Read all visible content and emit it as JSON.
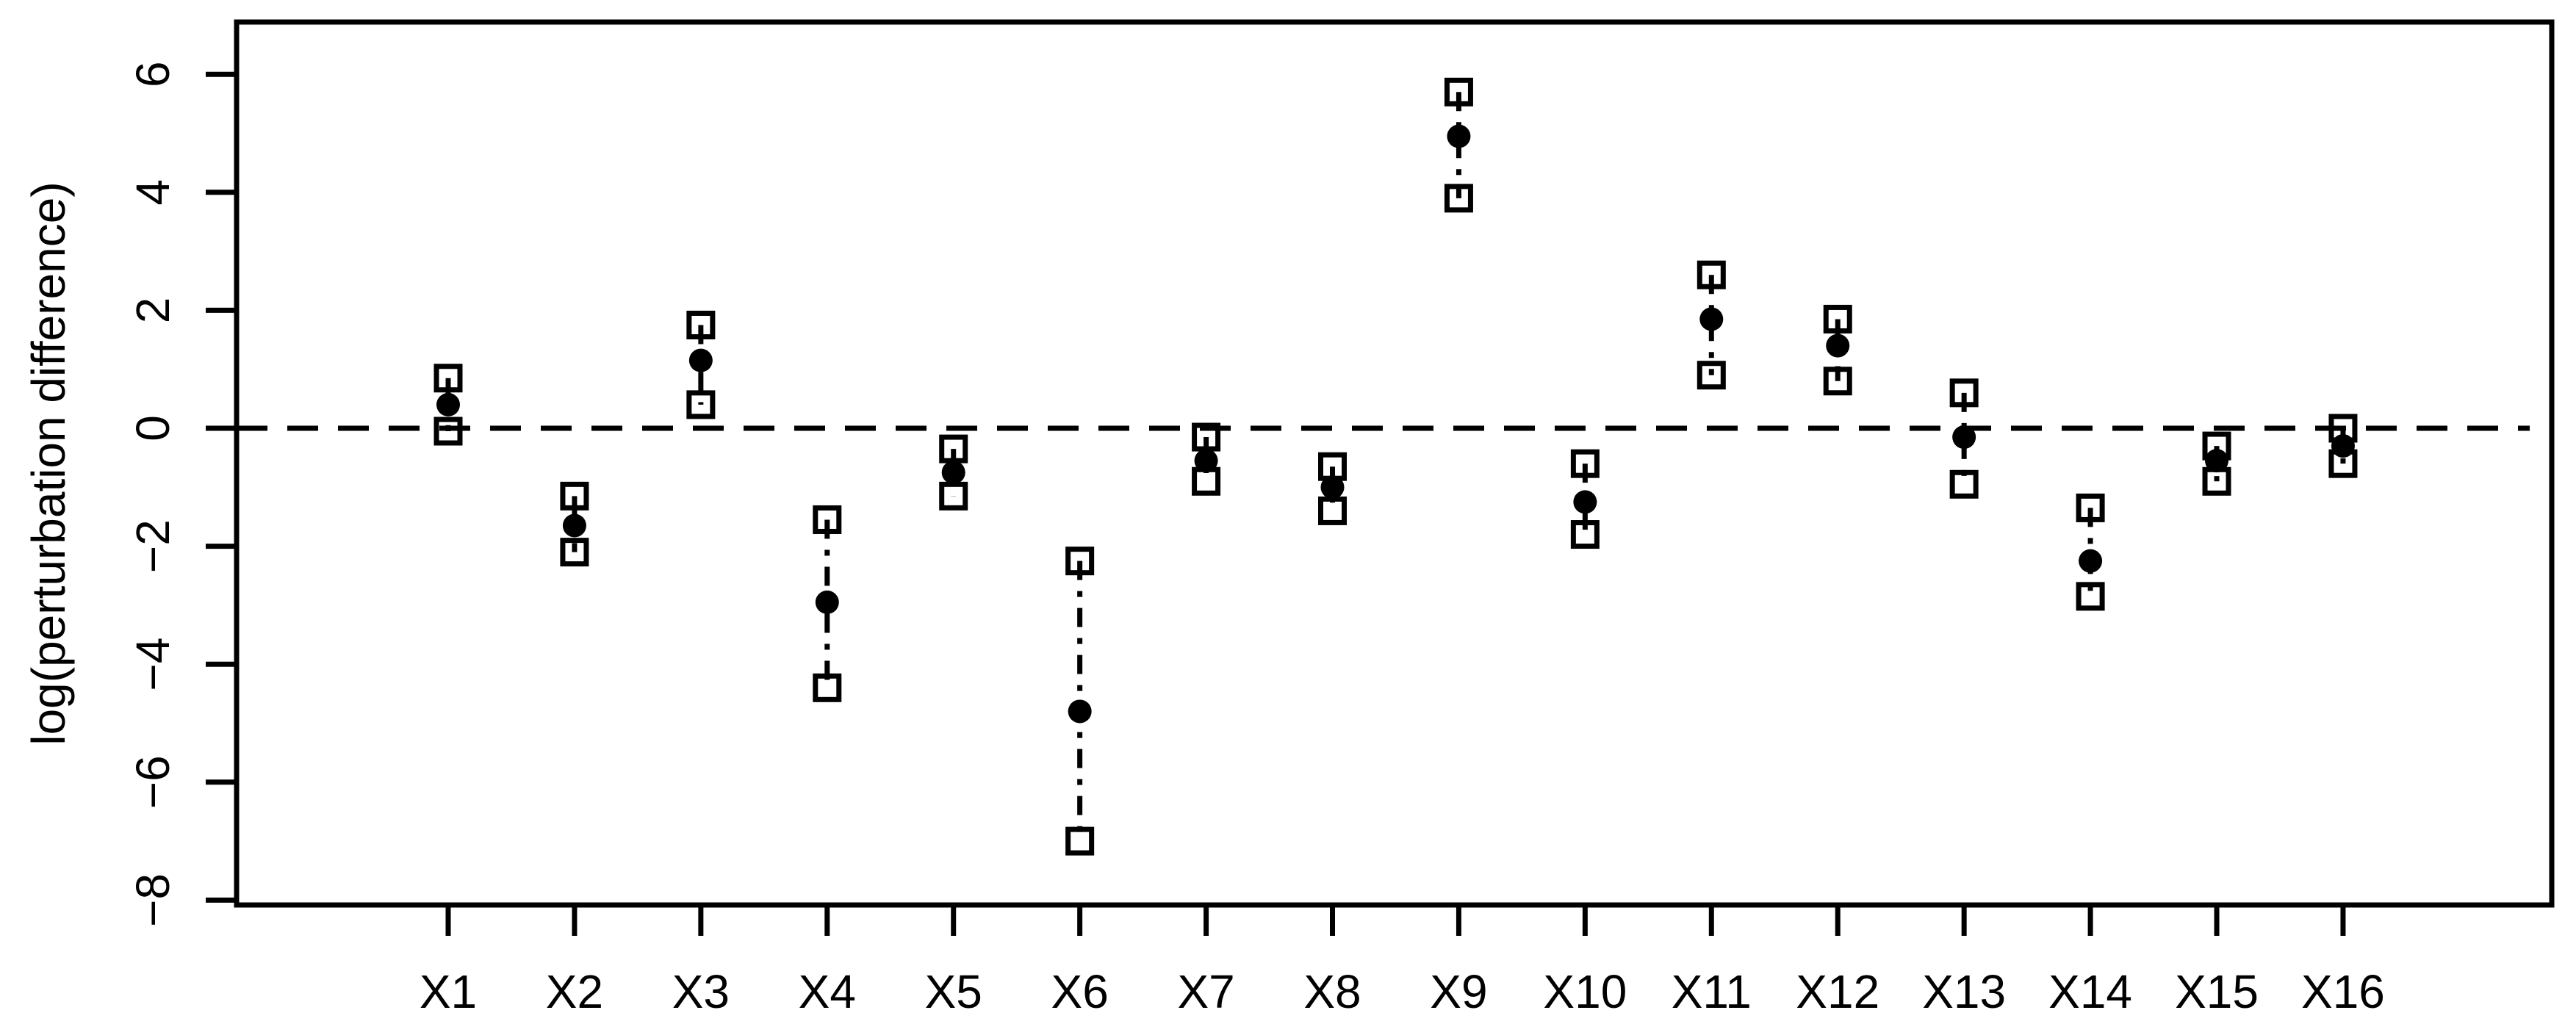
{
  "figure": {
    "background_color": "#ffffff",
    "foreground_color": "#000000"
  },
  "chart_data": {
    "type": "scatter",
    "title": "",
    "xlabel": "",
    "ylabel": "log(perturbation difference)",
    "categories": [
      "X1",
      "X2",
      "X3",
      "X4",
      "X5",
      "X6",
      "X7",
      "X8",
      "X9",
      "X10",
      "X11",
      "X12",
      "X13",
      "X14",
      "X15",
      "X16"
    ],
    "yticks": [
      6,
      4,
      2,
      0,
      -2,
      -4,
      -6,
      -8
    ],
    "ylim": [
      -8.1,
      6.9
    ],
    "grid": false,
    "legend_position": "none",
    "zero_reference_line": {
      "y": 0,
      "style": "dashed"
    },
    "interval_line_style": "dash-dot",
    "series": [
      {
        "name": "upper bound",
        "marker": "open-square",
        "values": [
          0.85,
          -1.15,
          1.75,
          -1.55,
          -0.35,
          -2.25,
          -0.15,
          -0.65,
          5.7,
          -0.6,
          2.6,
          1.85,
          0.6,
          -1.35,
          -0.3,
          0.0
        ]
      },
      {
        "name": "point estimate",
        "marker": "filled-circle",
        "values": [
          0.4,
          -1.65,
          1.15,
          -2.95,
          -0.75,
          -4.8,
          -0.55,
          -1.0,
          4.95,
          -1.25,
          1.85,
          1.4,
          -0.15,
          -2.25,
          -0.55,
          -0.3
        ]
      },
      {
        "name": "lower bound",
        "marker": "open-square",
        "values": [
          -0.05,
          -2.1,
          0.4,
          -4.4,
          -1.15,
          -7.0,
          -0.9,
          -1.4,
          3.9,
          -1.8,
          0.9,
          0.8,
          -0.95,
          -2.85,
          -0.9,
          -0.6
        ]
      }
    ]
  }
}
